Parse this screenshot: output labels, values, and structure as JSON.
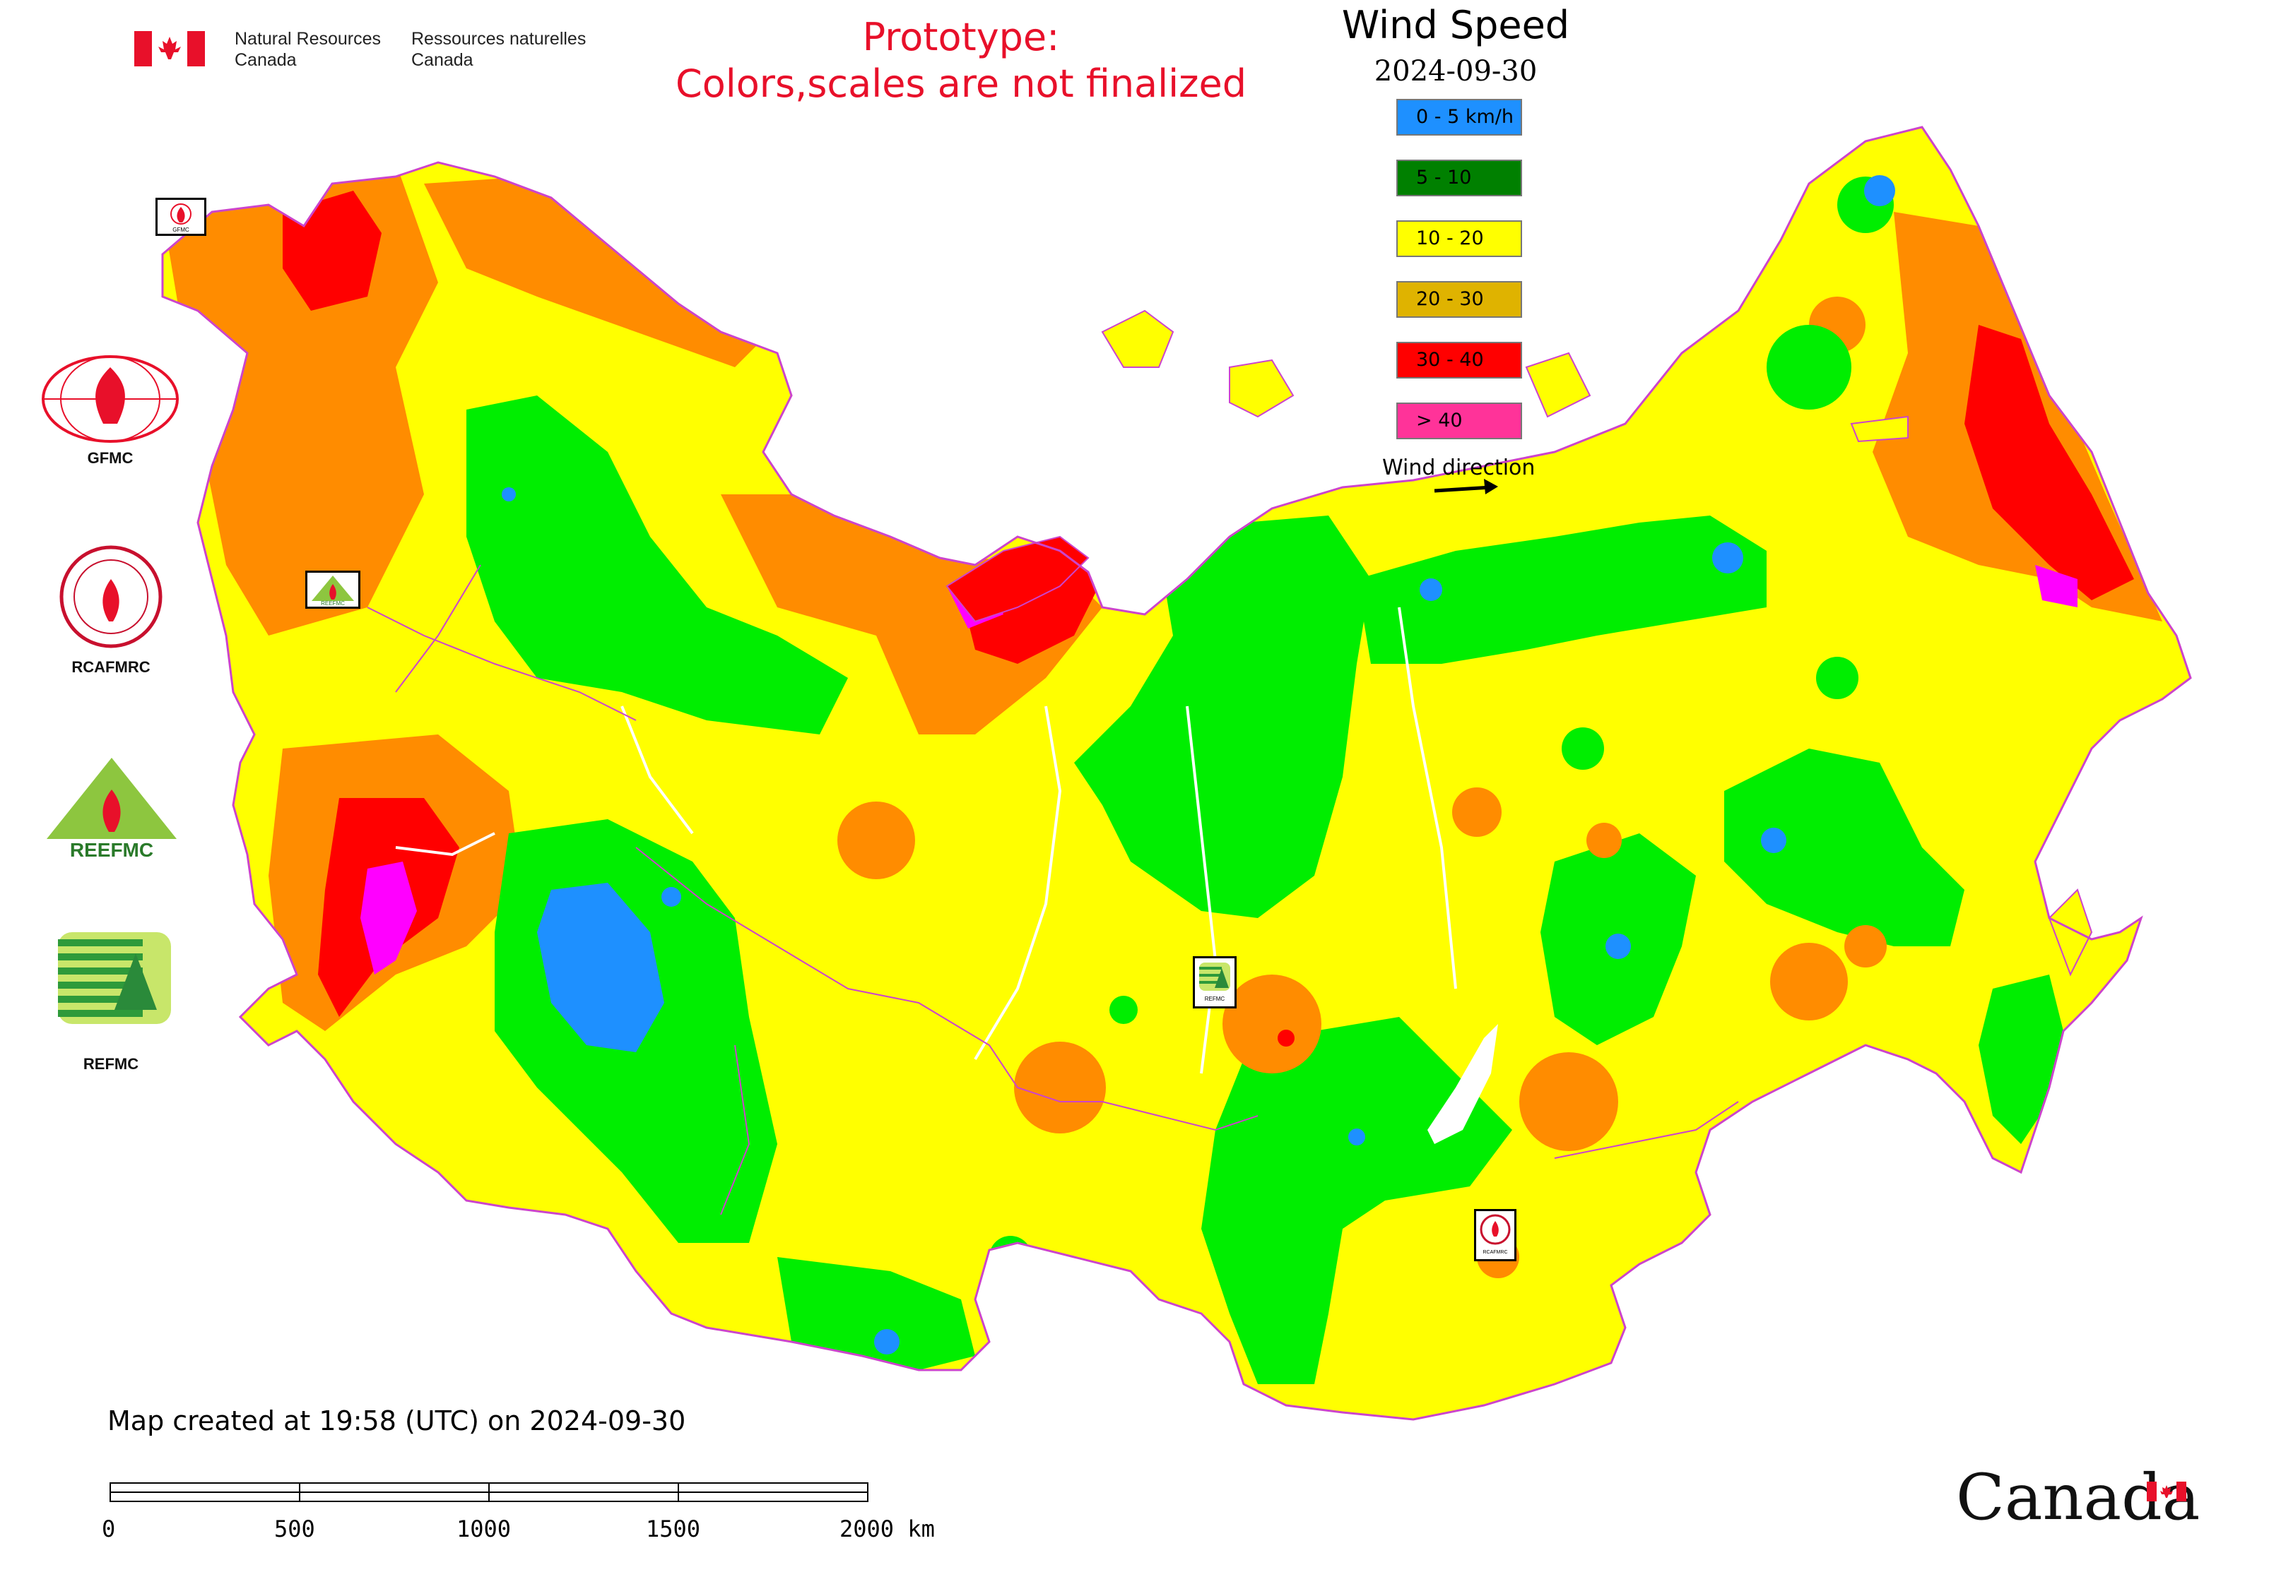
{
  "header": {
    "gov_en": [
      "Natural Resources",
      "Canada"
    ],
    "gov_fr": [
      "Ressources naturelles",
      "Canada"
    ],
    "prototype_lines": [
      "Prototype:",
      "Colors,scales are not finalized"
    ]
  },
  "legend": {
    "title": "Wind Speed",
    "date": "2024-09-30",
    "classes": [
      {
        "label": "0 - 5 km/h",
        "color": "#1e90ff"
      },
      {
        "label": "5 - 10",
        "color": "#008000"
      },
      {
        "label": "10 - 20",
        "color": "#ffff00"
      },
      {
        "label": "20 - 30",
        "color": "#dfb300"
      },
      {
        "label": "30 - 40",
        "color": "#ff0000"
      },
      {
        "label": "> 40",
        "color": "#ff3399"
      }
    ],
    "wind_direction_label": "Wind direction"
  },
  "map_colors": {
    "low": "#1e90ff",
    "calm": "#00ee00",
    "moderate": "#ffff00",
    "fresh": "#ff8c00",
    "strong": "#ff0000",
    "gale": "#ff00ff",
    "boundary": "#cc44cc"
  },
  "organizations": [
    {
      "label": "GFMC",
      "icon": "gfmc-logo-icon"
    },
    {
      "label": "RCAFMRC",
      "icon": "rcafmrc-logo-icon"
    },
    {
      "label": "",
      "icon": "reefmc-logo-icon"
    },
    {
      "label": "REFMC",
      "icon": "refmc-logo-icon"
    }
  ],
  "map_markers": {
    "gfmc": "GFMC",
    "reefmc": "REEFMC",
    "refmc": "REFMC",
    "rcafmrc": "RCAFMRC"
  },
  "footer": {
    "created": "Map created at 19:58 (UTC) on 2024-09-30",
    "scale_ticks": [
      "0",
      "500",
      "1000",
      "1500",
      "2000 km"
    ],
    "wordmark": "Canada"
  }
}
